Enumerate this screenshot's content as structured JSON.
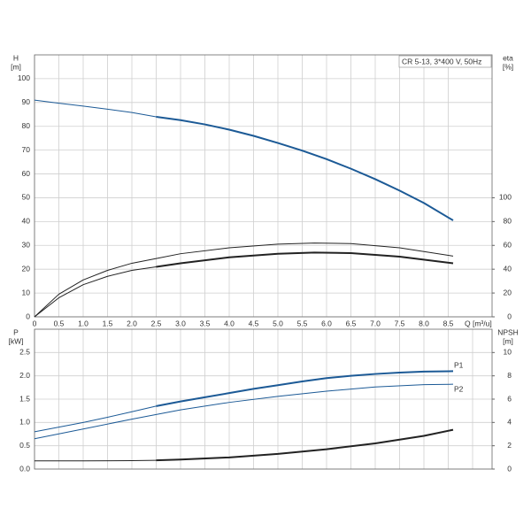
{
  "chart_data": [
    {
      "type": "line",
      "y_label": "H",
      "y_unit": "[m]",
      "y2_label": "eta",
      "y2_unit": "[%]",
      "x_label": "Q [m³/u]",
      "annotation": "CR 5-13, 3*400 V, 50Hz",
      "xlim": [
        0,
        9.4
      ],
      "xticks": [
        0,
        0.5,
        {
          "value": 1,
          "label": "1.0"
        },
        1.5,
        {
          "value": 2,
          "label": "2.0"
        },
        2.5,
        {
          "value": 3,
          "label": "3.0"
        },
        3.5,
        {
          "value": 4,
          "label": "4.0"
        },
        4.5,
        {
          "value": 5,
          "label": "5.0"
        },
        5.5,
        {
          "value": 6,
          "label": "6.0"
        },
        6.5,
        {
          "value": 7,
          "label": "7.0"
        },
        7.5,
        {
          "value": 8,
          "label": "8.0"
        },
        8.5
      ],
      "ylim": [
        0,
        110
      ],
      "yticks": [
        0,
        10,
        20,
        30,
        40,
        50,
        60,
        70,
        80,
        90,
        100
      ],
      "y2lim": [
        0,
        220
      ],
      "y2ticks": [
        0,
        20,
        40,
        60,
        80,
        100
      ],
      "grid": true,
      "series": [
        {
          "color": "#1c5a96",
          "linewidth": 1,
          "x": [
            0,
            0.5,
            1,
            1.5,
            2,
            2.5
          ],
          "values": [
            91,
            89.7,
            88.5,
            87.2,
            85.8,
            84
          ]
        },
        {
          "color": "#1c5a96",
          "linewidth": 2,
          "x": [
            2.5,
            3,
            3.5,
            4,
            4.5,
            5,
            5.5,
            6,
            6.5,
            7,
            7.5,
            8,
            8.6
          ],
          "values": [
            84,
            82.6,
            80.8,
            78.6,
            76,
            73,
            69.8,
            66.2,
            62.2,
            57.8,
            53,
            47.8,
            40.5
          ]
        },
        {
          "color": "#222222",
          "linewidth": 1,
          "axis": "y2",
          "x": [
            0,
            0.5,
            1,
            1.5,
            2,
            2.5,
            3,
            4,
            5,
            5.75,
            6.5,
            7.5,
            8.6
          ],
          "values": [
            0,
            19,
            31,
            39,
            45,
            49,
            53,
            58,
            61,
            62,
            61.5,
            58,
            51
          ]
        },
        {
          "color": "#222222",
          "linewidth": 1,
          "axis": "y2",
          "x": [
            0,
            0.5,
            1,
            1.5,
            2,
            2.5
          ],
          "values": [
            0,
            16,
            27,
            34,
            39,
            42
          ]
        },
        {
          "color": "#222222",
          "linewidth": 2,
          "axis": "y2",
          "x": [
            2.5,
            3,
            4,
            5,
            5.75,
            6.5,
            7.5,
            8.6
          ],
          "values": [
            42,
            45,
            50,
            53,
            54,
            53.5,
            50.5,
            45
          ]
        }
      ]
    },
    {
      "type": "line",
      "y_label": "P",
      "y_unit": "[kW]",
      "y2_label": "NPSH",
      "y2_unit": "[m]",
      "xlim": [
        0,
        9.4
      ],
      "xticks": [
        0,
        0.5,
        1,
        1.5,
        2,
        2.5,
        3,
        3.5,
        4,
        4.5,
        5,
        5.5,
        6,
        6.5,
        7,
        7.5,
        8,
        8.5,
        9
      ],
      "ylim": [
        0,
        3
      ],
      "yticks": [
        {
          "value": 0,
          "label": "0.0"
        },
        0.5,
        {
          "value": 1,
          "label": "1.0"
        },
        1.5,
        {
          "value": 2,
          "label": "2.0"
        },
        2.5
      ],
      "y2lim": [
        0,
        12
      ],
      "y2ticks": [
        0,
        2,
        4,
        6,
        8,
        10
      ],
      "grid": true,
      "series": [
        {
          "color": "#1c5a96",
          "linewidth": 1,
          "x": [
            0,
            0.5,
            1,
            1.5,
            2,
            2.5
          ],
          "values": [
            0.8,
            0.9,
            1.0,
            1.11,
            1.23,
            1.35
          ]
        },
        {
          "name": "P1",
          "color": "#1c5a96",
          "linewidth": 2,
          "x": [
            2.5,
            3,
            3.5,
            4,
            4.5,
            5,
            5.5,
            6,
            6.5,
            7,
            7.5,
            8,
            8.6
          ],
          "values": [
            1.35,
            1.45,
            1.54,
            1.63,
            1.72,
            1.8,
            1.88,
            1.95,
            2.0,
            2.04,
            2.07,
            2.09,
            2.1
          ]
        },
        {
          "name": "P2",
          "color": "#1c5a96",
          "linewidth": 1,
          "x": [
            0,
            1,
            2,
            2.5,
            3,
            4,
            5,
            6,
            7,
            8,
            8.6
          ],
          "values": [
            0.65,
            0.86,
            1.07,
            1.17,
            1.27,
            1.43,
            1.56,
            1.67,
            1.76,
            1.81,
            1.82
          ]
        },
        {
          "color": "#222222",
          "linewidth": 1,
          "axis": "y2",
          "x": [
            0,
            1,
            2,
            2.5
          ],
          "values": [
            0.7,
            0.7,
            0.72,
            0.75
          ]
        },
        {
          "color": "#222222",
          "linewidth": 2,
          "axis": "y2",
          "x": [
            2.5,
            3,
            4,
            5,
            6,
            7,
            8,
            8.6
          ],
          "values": [
            0.75,
            0.82,
            1.0,
            1.3,
            1.7,
            2.2,
            2.85,
            3.37
          ]
        }
      ]
    }
  ]
}
